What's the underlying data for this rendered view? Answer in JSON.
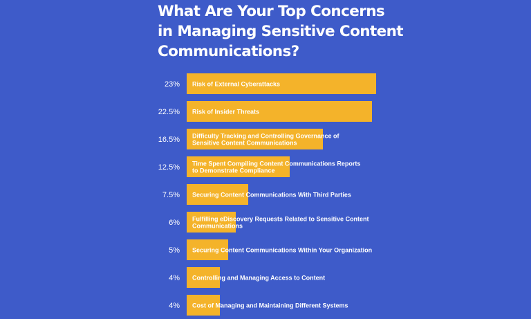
{
  "title_lines": [
    "What Are Your Top Concerns",
    "in Managing Sensitive Content",
    "Communications?"
  ],
  "colors": {
    "background": "#3e5bc9",
    "bar": "#f4b32a",
    "text": "#ffffff"
  },
  "chart_data": {
    "type": "bar",
    "orientation": "horizontal",
    "title": "What Are Your Top Concerns in Managing Sensitive Content Communications?",
    "categories": [
      [
        "Risk of External Cyberattacks"
      ],
      [
        "Risk of Insider Threats"
      ],
      [
        "Difficulty Tracking and Controlling Governance of",
        "Sensitive Content Communications"
      ],
      [
        "Time Spent Compiling Content Communications Reports",
        "to Demonstrate Compliance"
      ],
      [
        "Securing Content Communications With Third Parties"
      ],
      [
        "Fulfilling eDiscovery Requests Related to Sensitive Content",
        "Communications"
      ],
      [
        "Securing Content Communications Within Your Organization"
      ],
      [
        "Controlling and Managing Access to Content"
      ],
      [
        "Cost of Managing and Maintaining Different Systems"
      ]
    ],
    "values": [
      23,
      22.5,
      16.5,
      12.5,
      7.5,
      6,
      5,
      4,
      4
    ],
    "value_labels": [
      "23%",
      "22.5%",
      "16.5%",
      "12.5%",
      "7.5%",
      "6%",
      "5%",
      "4%",
      "4%"
    ],
    "xlim": [
      0,
      23
    ],
    "grid": false,
    "legend": "none"
  }
}
